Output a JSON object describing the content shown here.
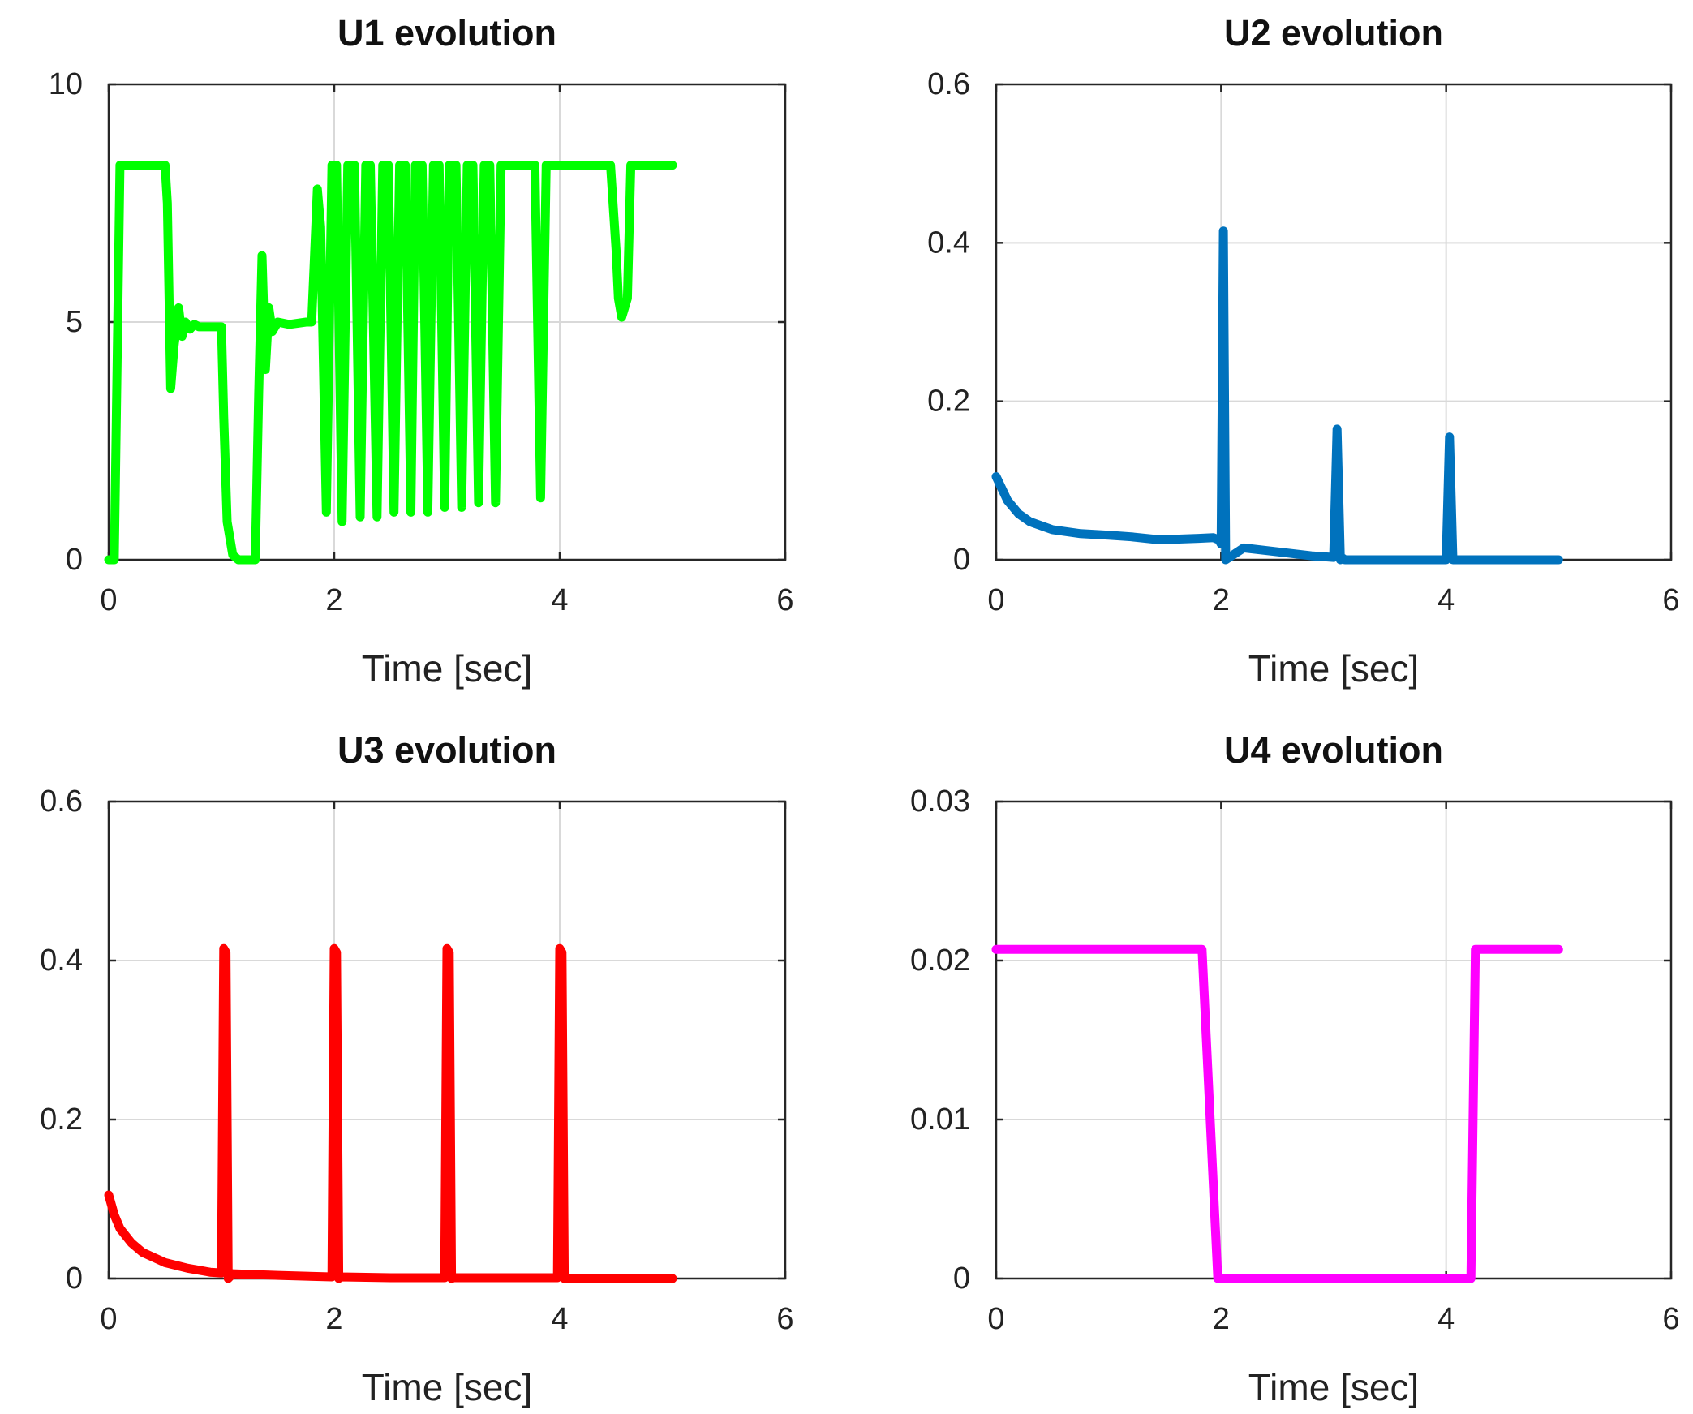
{
  "figure": {
    "layout": "2x2 subplots"
  },
  "chart_data": [
    {
      "type": "line",
      "title": "U1 evolution",
      "xlabel": "Time [sec]",
      "ylabel": "",
      "xlim": [
        0,
        6
      ],
      "ylim": [
        0,
        10
      ],
      "xticks": [
        0,
        2,
        4,
        6
      ],
      "yticks": [
        0,
        5,
        10
      ],
      "grid": true,
      "color": "#00ff00",
      "series": [
        {
          "name": "U1",
          "x": [
            0,
            0.05,
            0.1,
            0.5,
            0.52,
            0.55,
            0.58,
            0.62,
            0.65,
            0.68,
            0.72,
            0.76,
            0.8,
            1.0,
            1.02,
            1.05,
            1.1,
            1.15,
            1.2,
            1.3,
            1.33,
            1.36,
            1.39,
            1.42,
            1.45,
            1.5,
            1.6,
            1.75,
            1.8,
            1.85,
            1.88,
            1.93,
            1.98,
            2.02,
            2.07,
            2.12,
            2.18,
            2.23,
            2.28,
            2.32,
            2.38,
            2.43,
            2.48,
            2.53,
            2.58,
            2.63,
            2.68,
            2.72,
            2.78,
            2.83,
            2.88,
            2.93,
            2.98,
            3.02,
            3.08,
            3.13,
            3.18,
            3.23,
            3.28,
            3.33,
            3.38,
            3.43,
            3.48,
            3.53,
            3.58,
            3.63,
            3.78,
            3.83,
            3.88,
            3.92,
            3.98,
            4.4,
            4.45,
            4.5,
            4.52,
            4.55,
            4.6,
            4.63,
            4.68,
            5.0
          ],
          "values": [
            0,
            0,
            8.3,
            8.3,
            7.5,
            3.6,
            4.5,
            5.3,
            4.7,
            5.0,
            4.85,
            4.95,
            4.9,
            4.9,
            3.0,
            0.8,
            0.1,
            0,
            0,
            0,
            3.5,
            6.4,
            4.0,
            5.3,
            4.8,
            5.0,
            4.95,
            5.0,
            5.0,
            7.8,
            7.0,
            1.0,
            8.3,
            8.3,
            0.8,
            8.3,
            8.3,
            0.9,
            8.3,
            8.3,
            0.9,
            8.3,
            8.3,
            1.0,
            8.3,
            8.3,
            1.0,
            8.3,
            8.3,
            1.0,
            8.3,
            8.3,
            1.1,
            8.3,
            8.3,
            1.1,
            8.3,
            8.3,
            1.2,
            8.3,
            8.3,
            1.2,
            8.3,
            8.3,
            8.3,
            8.3,
            8.3,
            1.3,
            8.3,
            8.3,
            8.3,
            8.3,
            8.3,
            6.5,
            5.5,
            5.1,
            5.5,
            8.3,
            8.3,
            8.3
          ]
        }
      ]
    },
    {
      "type": "line",
      "title": "U2 evolution",
      "xlabel": "Time [sec]",
      "ylabel": "",
      "xlim": [
        0,
        6
      ],
      "ylim": [
        0,
        0.6
      ],
      "xticks": [
        0,
        2,
        4,
        6
      ],
      "yticks": [
        0,
        0.2,
        0.4,
        0.6
      ],
      "grid": true,
      "color": "#0072bd",
      "series": [
        {
          "name": "U2",
          "x": [
            0,
            0.1,
            0.2,
            0.3,
            0.5,
            0.75,
            1.0,
            1.2,
            1.4,
            1.6,
            1.8,
            1.93,
            1.98,
            2.0,
            2.02,
            2.04,
            2.2,
            2.5,
            2.8,
            3.0,
            3.03,
            3.06,
            3.08,
            3.1,
            3.3,
            3.6,
            4.0,
            4.03,
            4.06,
            4.08,
            4.1,
            4.5,
            5.0
          ],
          "values": [
            0.105,
            0.075,
            0.058,
            0.048,
            0.038,
            0.033,
            0.031,
            0.029,
            0.026,
            0.026,
            0.027,
            0.028,
            0.025,
            0.02,
            0.415,
            0,
            0.015,
            0.01,
            0.005,
            0.003,
            0.165,
            0,
            0.002,
            0,
            0,
            0,
            0,
            0.155,
            0,
            0,
            0,
            0,
            0
          ]
        }
      ]
    },
    {
      "type": "line",
      "title": "U3 evolution",
      "xlabel": "Time [sec]",
      "ylabel": "",
      "xlim": [
        0,
        6
      ],
      "ylim": [
        0,
        0.6
      ],
      "xticks": [
        0,
        2,
        4,
        6
      ],
      "yticks": [
        0,
        0.2,
        0.4,
        0.6
      ],
      "grid": true,
      "color": "#ff0000",
      "series": [
        {
          "name": "U3",
          "x": [
            0,
            0.05,
            0.1,
            0.2,
            0.3,
            0.5,
            0.7,
            0.9,
            1.0,
            1.02,
            1.04,
            1.06,
            1.1,
            1.5,
            1.98,
            2.0,
            2.02,
            2.04,
            2.06,
            2.5,
            2.98,
            3.0,
            3.02,
            3.04,
            3.06,
            3.5,
            3.98,
            4.0,
            4.02,
            4.04,
            4.06,
            4.5,
            5.0
          ],
          "values": [
            0.105,
            0.08,
            0.063,
            0.045,
            0.033,
            0.02,
            0.013,
            0.008,
            0.007,
            0.415,
            0.41,
            0,
            0.006,
            0.004,
            0.002,
            0.415,
            0.41,
            0,
            0.002,
            0.001,
            0.001,
            0.415,
            0.41,
            0,
            0.001,
            0.001,
            0.001,
            0.415,
            0.41,
            0,
            0,
            0,
            0
          ]
        }
      ]
    },
    {
      "type": "line",
      "title": "U4 evolution",
      "xlabel": "Time [sec]",
      "ylabel": "",
      "xlim": [
        0,
        6
      ],
      "ylim": [
        0,
        0.03
      ],
      "xticks": [
        0,
        2,
        4,
        6
      ],
      "yticks": [
        0,
        0.01,
        0.02,
        0.03
      ],
      "grid": true,
      "color": "#ff00ff",
      "series": [
        {
          "name": "U4",
          "x": [
            0,
            1.83,
            1.97,
            4.22,
            4.26,
            5.0
          ],
          "values": [
            0.0207,
            0.0207,
            0,
            0,
            0.0207,
            0.0207
          ]
        }
      ]
    }
  ]
}
